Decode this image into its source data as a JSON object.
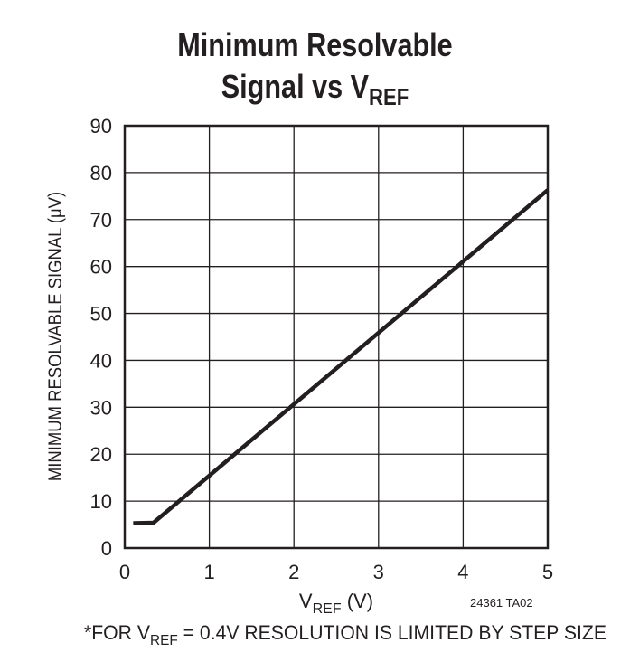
{
  "chart_data": {
    "type": "line",
    "title_line1": "Minimum Resolvable",
    "title_line2_prefix": "Signal vs V",
    "title_line2_sub": "REF",
    "xlabel_main": "V",
    "xlabel_sub": "REF",
    "xlabel_unit": " (V)",
    "ylabel": "MINIMUM RESOLVABLE SIGNAL (μV)",
    "xlim": [
      0,
      5
    ],
    "ylim": [
      0,
      90
    ],
    "xticks": [
      0,
      1,
      2,
      3,
      4,
      5
    ],
    "yticks": [
      0,
      10,
      20,
      30,
      40,
      50,
      60,
      70,
      80,
      90
    ],
    "grid": true,
    "series": [
      {
        "x": [
          0.1,
          0.34,
          5.0
        ],
        "y": [
          5.3,
          5.4,
          76.3
        ]
      }
    ],
    "figure_id": "24361 TA02",
    "footnote_prefix": "*FOR V",
    "footnote_sub": "REF",
    "footnote_suffix": " = 0.4V RESOLUTION IS LIMITED BY STEP SIZE",
    "line_color": "#231f20"
  }
}
